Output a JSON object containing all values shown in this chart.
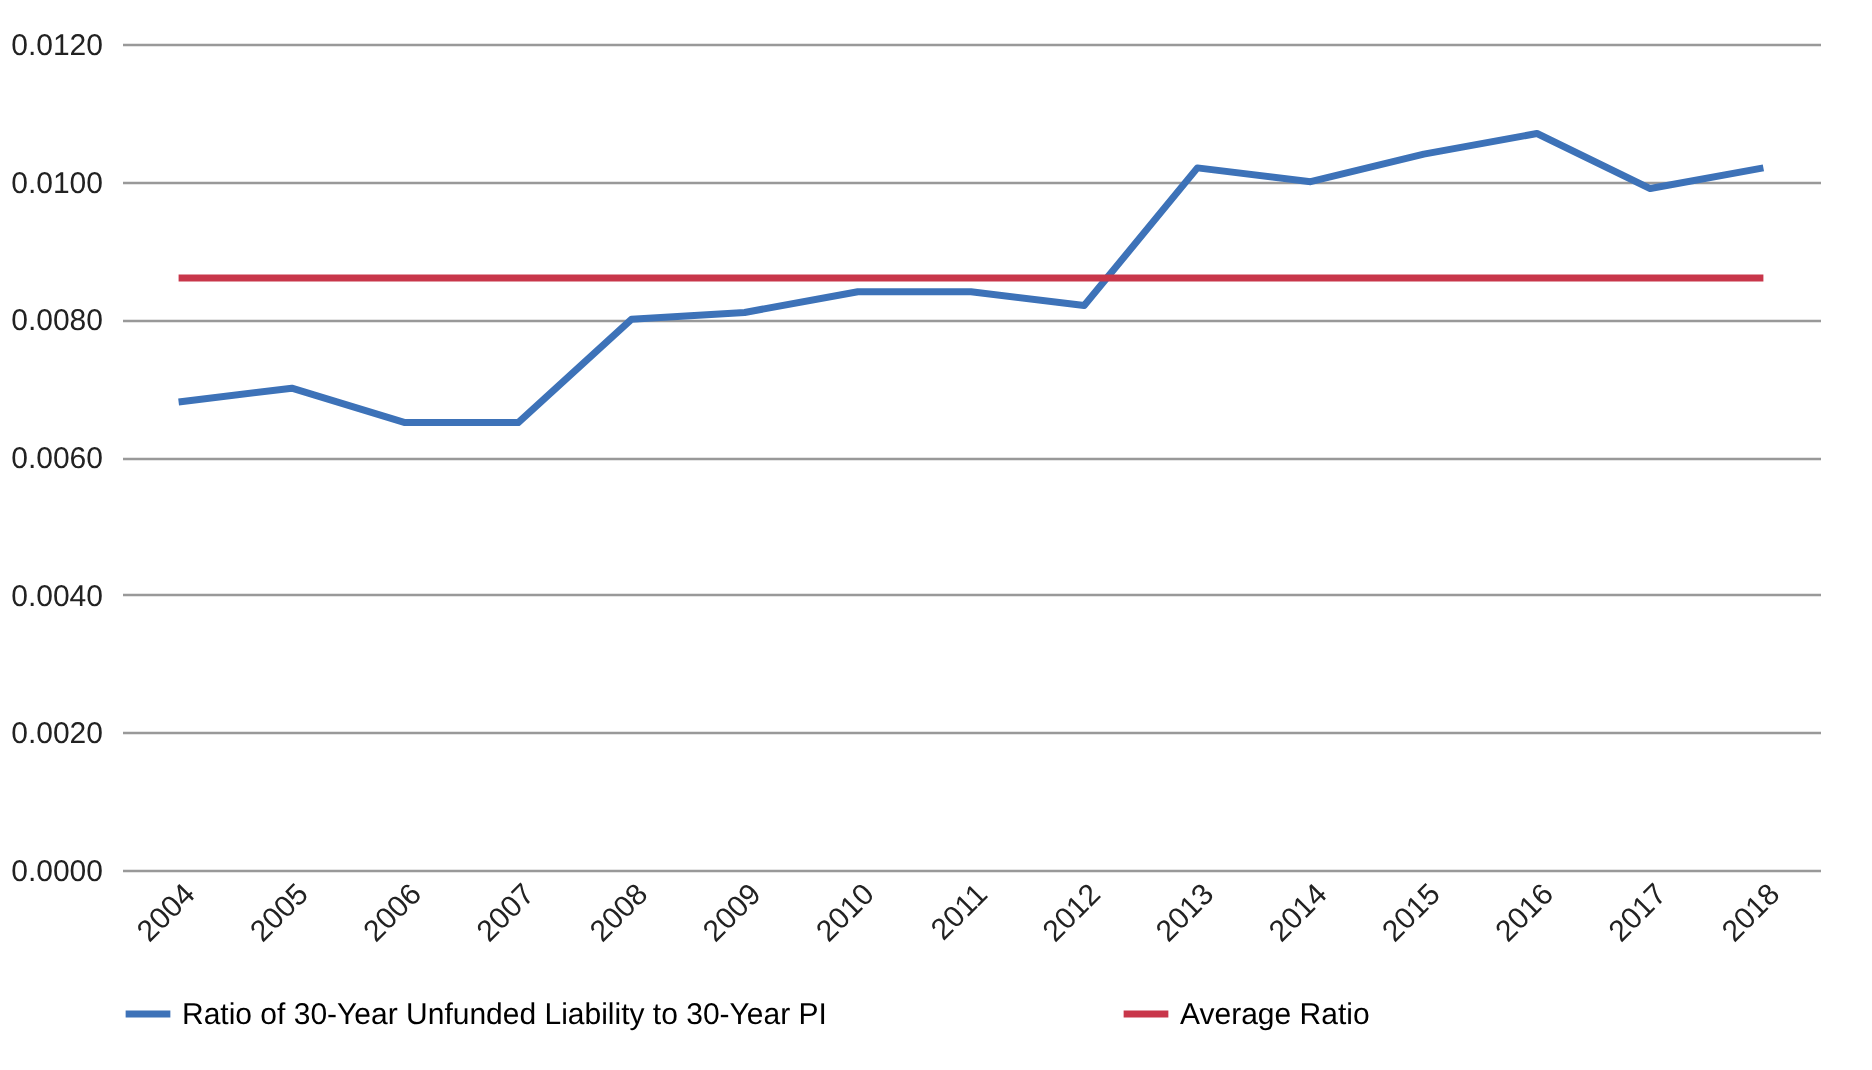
{
  "chart_data": {
    "type": "line",
    "categories": [
      "2004",
      "2005",
      "2006",
      "2007",
      "2008",
      "2009",
      "2010",
      "2011",
      "2012",
      "2013",
      "2014",
      "2015",
      "2016",
      "2017",
      "2018"
    ],
    "series": [
      {
        "name": "Ratio of 30-Year Unfunded Liability to 30-Year PI",
        "color": "#3d72b8",
        "values": [
          0.0068,
          0.007,
          0.0065,
          0.0065,
          0.008,
          0.0081,
          0.0084,
          0.0084,
          0.0082,
          0.0102,
          0.01,
          0.0104,
          0.0107,
          0.0099,
          0.0102
        ]
      },
      {
        "name": "Average Ratio",
        "color": "#c8364a",
        "values": [
          0.0086,
          0.0086,
          0.0086,
          0.0086,
          0.0086,
          0.0086,
          0.0086,
          0.0086,
          0.0086,
          0.0086,
          0.0086,
          0.0086,
          0.0086,
          0.0086,
          0.0086
        ]
      }
    ],
    "ylim": [
      0,
      0.012
    ],
    "yticks": [
      {
        "value": 0,
        "label": "0.0000"
      },
      {
        "value": 0.002,
        "label": "0.0020"
      },
      {
        "value": 0.004,
        "label": "0.0040"
      },
      {
        "value": 0.006,
        "label": "0.0060"
      },
      {
        "value": 0.008,
        "label": "0.0080"
      },
      {
        "value": 0.01,
        "label": "0.0100"
      },
      {
        "value": 0.012,
        "label": "0.0120"
      }
    ],
    "grid": "y",
    "legend": "bottom",
    "marker": "none",
    "line_style": "solid"
  }
}
